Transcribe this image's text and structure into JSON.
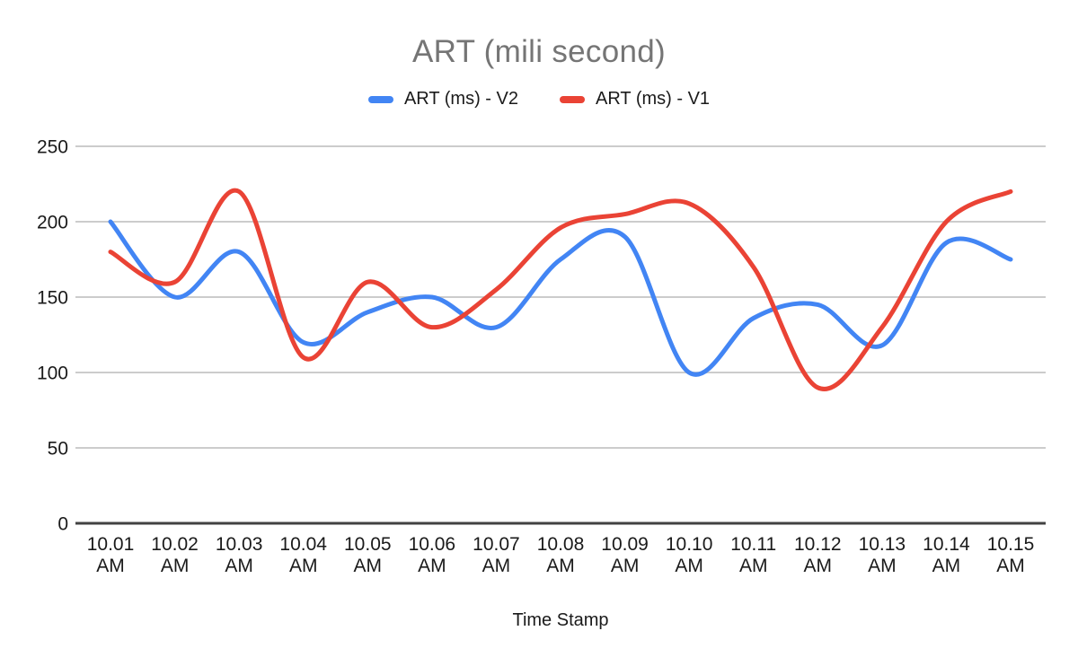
{
  "chart_data": {
    "type": "line",
    "title": "ART (mili second)",
    "xlabel": "Time Stamp",
    "ylabel": "",
    "categories": [
      "10.01 AM",
      "10.02 AM",
      "10.03 AM",
      "10.04 AM",
      "10.05 AM",
      "10.06 AM",
      "10.07 AM",
      "10.08 AM",
      "10.09 AM",
      "10.10 AM",
      "10.11 AM",
      "10.12 AM",
      "10.13 AM",
      "10.14 AM",
      "10.15 AM"
    ],
    "y_ticks": [
      0,
      50,
      100,
      150,
      200,
      250
    ],
    "ylim": [
      0,
      250
    ],
    "grid": true,
    "legend_position": "top",
    "line_style": "smooth",
    "series": [
      {
        "name": "ART (ms) - V2",
        "color": "#4285F4",
        "values": [
          200,
          150,
          180,
          120,
          140,
          150,
          130,
          175,
          190,
          100,
          136,
          145,
          118,
          186,
          175
        ]
      },
      {
        "name": "ART (ms) - V1",
        "color": "#EA4335",
        "values": [
          180,
          160,
          220,
          110,
          160,
          130,
          155,
          196,
          205,
          212,
          170,
          90,
          130,
          200,
          220
        ]
      }
    ],
    "colors": {
      "title": "#757575",
      "tick_labels": "#1a1a1a",
      "grid": "#cccccc",
      "baseline": "#424242"
    }
  }
}
